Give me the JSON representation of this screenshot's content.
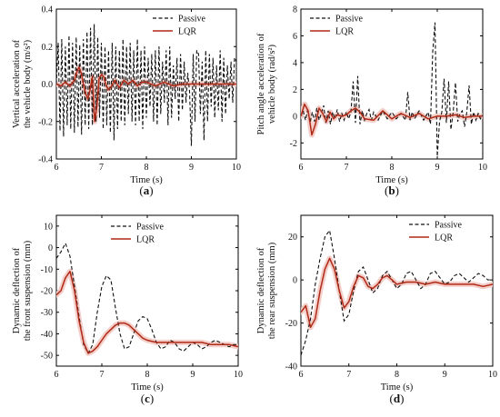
{
  "colors": {
    "passive": "#111111",
    "lqr": "#b02a17",
    "band": "#f3c9c3",
    "axis": "#000000"
  },
  "chart_data": [
    {
      "type": "line",
      "panel_label": "(a)",
      "caption_letter": "a",
      "xlabel": "Time (s)",
      "ylabel_line1": "Vertical acceleration of",
      "ylabel_line2": "the vehicle body (m/s²)",
      "xlim": [
        6,
        10
      ],
      "ylim": [
        -0.4,
        0.4
      ],
      "xticks": [
        6,
        7,
        8,
        9,
        10
      ],
      "yticks": [
        -0.4,
        -0.2,
        0.0,
        0.2,
        0.4
      ],
      "ytick_labels": [
        "-0.4",
        "-0.2",
        "0.0",
        "0.2",
        "0.4"
      ],
      "legend_position": "top-right",
      "series": [
        {
          "name": "Passive",
          "style": "dashed",
          "x": [
            6.0,
            6.04,
            6.08,
            6.12,
            6.16,
            6.2,
            6.24,
            6.28,
            6.32,
            6.36,
            6.4,
            6.44,
            6.48,
            6.52,
            6.56,
            6.6,
            6.64,
            6.68,
            6.72,
            6.76,
            6.8,
            6.84,
            6.88,
            6.92,
            6.96,
            7.0,
            7.04,
            7.08,
            7.12,
            7.16,
            7.2,
            7.24,
            7.28,
            7.32,
            7.36,
            7.4,
            7.44,
            7.48,
            7.52,
            7.56,
            7.6,
            7.64,
            7.68,
            7.72,
            7.76,
            7.8,
            7.84,
            7.88,
            7.92,
            7.96,
            8.0,
            8.04,
            8.08,
            8.12,
            8.16,
            8.2,
            8.24,
            8.28,
            8.32,
            8.36,
            8.4,
            8.44,
            8.48,
            8.52,
            8.56,
            8.6,
            8.64,
            8.68,
            8.72,
            8.76,
            8.8,
            8.84,
            8.88,
            8.92,
            8.96,
            9.0,
            9.04,
            9.08,
            9.12,
            9.16,
            9.2,
            9.24,
            9.28,
            9.32,
            9.36,
            9.4,
            9.44,
            9.48,
            9.52,
            9.56,
            9.6,
            9.64,
            9.68,
            9.72,
            9.76,
            9.8,
            9.84,
            9.88,
            9.92,
            9.96,
            10.0
          ],
          "y": [
            0.0,
            0.22,
            -0.25,
            0.24,
            -0.28,
            0.2,
            -0.22,
            0.26,
            -0.24,
            0.22,
            -0.26,
            0.25,
            -0.23,
            0.21,
            -0.27,
            0.24,
            -0.22,
            0.28,
            -0.24,
            0.3,
            -0.22,
            0.32,
            -0.2,
            0.25,
            -0.18,
            0.22,
            -0.24,
            0.2,
            -0.22,
            0.18,
            -0.26,
            0.22,
            -0.3,
            0.2,
            -0.24,
            0.18,
            -0.2,
            0.24,
            -0.22,
            0.2,
            -0.16,
            0.22,
            -0.2,
            0.18,
            -0.22,
            0.24,
            -0.2,
            0.18,
            -0.24,
            0.2,
            -0.18,
            0.14,
            -0.12,
            0.16,
            -0.2,
            0.18,
            -0.22,
            0.2,
            -0.16,
            0.12,
            -0.1,
            0.18,
            -0.22,
            0.2,
            -0.18,
            0.1,
            -0.08,
            0.14,
            -0.2,
            0.16,
            -0.14,
            0.12,
            -0.1,
            0.06,
            -0.04,
            -0.33,
            0.16,
            -0.2,
            0.18,
            0.16,
            -0.16,
            0.12,
            -0.3,
            0.18,
            -0.2,
            0.16,
            -0.12,
            0.14,
            -0.18,
            0.1,
            -0.14,
            0.18,
            -0.2,
            0.14,
            -0.16,
            0.1,
            -0.08,
            0.12,
            -0.1,
            0.14,
            0.12
          ]
        },
        {
          "name": "LQR",
          "style": "solid",
          "x": [
            6.0,
            6.1,
            6.2,
            6.3,
            6.4,
            6.45,
            6.5,
            6.55,
            6.6,
            6.65,
            6.7,
            6.75,
            6.8,
            6.85,
            6.9,
            6.95,
            7.0,
            7.05,
            7.1,
            7.15,
            7.2,
            7.3,
            7.4,
            7.5,
            7.6,
            7.7,
            7.8,
            7.9,
            8.0,
            8.2,
            8.4,
            8.6,
            8.8,
            9.0,
            9.2,
            9.4,
            9.6,
            9.8,
            10.0
          ],
          "y": [
            0.0,
            -0.01,
            0.01,
            -0.01,
            0.02,
            0.06,
            0.09,
            0.06,
            0.0,
            -0.05,
            -0.08,
            -0.03,
            0.04,
            -0.2,
            -0.12,
            0.03,
            0.05,
            0.04,
            0.0,
            -0.03,
            -0.02,
            0.02,
            -0.02,
            0.02,
            0.0,
            0.02,
            -0.01,
            0.01,
            0.01,
            -0.01,
            0.01,
            -0.01,
            0.0,
            0.0,
            0.0,
            0.0,
            0.0,
            0.0,
            0.0
          ]
        }
      ]
    },
    {
      "type": "line",
      "panel_label": "(b)",
      "caption_letter": "b",
      "xlabel": "Time (s)",
      "ylabel_line1": "Pitch angle acceleration of",
      "ylabel_line2": "vehicle body (rad/s²)",
      "xlim": [
        6,
        10
      ],
      "ylim": [
        -3.2,
        8
      ],
      "xticks": [
        6,
        7,
        8,
        9,
        10
      ],
      "yticks": [
        -2,
        0,
        2,
        4,
        6,
        8
      ],
      "ytick_labels": [
        "-2",
        "0",
        "2",
        "4",
        "6",
        "8"
      ],
      "legend_position": "top-left",
      "series": [
        {
          "name": "Passive",
          "style": "dashed",
          "x": [
            6.0,
            6.05,
            6.1,
            6.15,
            6.2,
            6.25,
            6.3,
            6.35,
            6.4,
            6.45,
            6.5,
            6.55,
            6.6,
            6.65,
            6.7,
            6.75,
            6.8,
            6.85,
            6.9,
            6.95,
            7.0,
            7.05,
            7.1,
            7.15,
            7.2,
            7.25,
            7.3,
            7.35,
            7.4,
            7.45,
            7.5,
            7.55,
            7.6,
            7.7,
            7.8,
            7.9,
            8.0,
            8.1,
            8.2,
            8.3,
            8.35,
            8.4,
            8.45,
            8.5,
            8.6,
            8.7,
            8.8,
            8.85,
            8.9,
            8.95,
            9.0,
            9.05,
            9.1,
            9.15,
            9.2,
            9.25,
            9.3,
            9.35,
            9.4,
            9.45,
            9.5,
            9.55,
            9.6,
            9.65,
            9.7,
            9.75,
            9.8,
            9.85,
            9.9,
            9.95,
            10.0
          ],
          "y": [
            0.0,
            0.4,
            -0.3,
            0.5,
            -0.5,
            0.3,
            -0.4,
            0.6,
            -0.3,
            0.2,
            0.8,
            -0.5,
            0.4,
            -0.6,
            0.3,
            -0.2,
            0.5,
            -0.4,
            0.2,
            -0.3,
            0.3,
            -0.2,
            0.3,
            2.6,
            -0.5,
            3.0,
            -0.6,
            0.4,
            -0.3,
            0.2,
            0.5,
            -0.3,
            0.3,
            -0.3,
            0.4,
            -0.2,
            0.3,
            -0.2,
            0.2,
            -0.3,
            1.8,
            -0.3,
            0.3,
            -0.2,
            0.4,
            -0.3,
            0.3,
            -0.6,
            4.8,
            7.0,
            -3.0,
            -0.4,
            0.3,
            2.8,
            -0.5,
            2.6,
            -1.0,
            0.3,
            2.5,
            -0.4,
            0.2,
            0.4,
            -0.8,
            0.3,
            2.3,
            -0.6,
            0.3,
            -0.3,
            0.2,
            -0.2,
            0.1
          ]
        },
        {
          "name": "LQR",
          "style": "solid",
          "x": [
            6.0,
            6.08,
            6.16,
            6.24,
            6.32,
            6.4,
            6.48,
            6.56,
            6.64,
            6.72,
            6.8,
            6.9,
            7.0,
            7.1,
            7.2,
            7.3,
            7.4,
            7.6,
            7.8,
            8.0,
            8.2,
            8.4,
            8.6,
            8.8,
            9.0,
            9.2,
            9.4,
            9.6,
            9.8,
            10.0
          ],
          "y": [
            0.0,
            0.9,
            0.4,
            -1.4,
            -0.6,
            0.6,
            0.2,
            -0.4,
            0.3,
            -0.2,
            0.1,
            0.0,
            0.1,
            0.4,
            0.6,
            0.3,
            -0.2,
            -0.3,
            0.4,
            -0.2,
            0.2,
            -0.1,
            0.2,
            -0.2,
            0.0,
            0.0,
            0.1,
            -0.1,
            0.0,
            0.0
          ]
        }
      ]
    },
    {
      "type": "line",
      "panel_label": "(c)",
      "caption_letter": "c",
      "xlabel": "Time (s)",
      "ylabel_line1": "Dynamic deflection of",
      "ylabel_line2": "the front suspension (mm)",
      "xlim": [
        6,
        10
      ],
      "ylim": [
        -55,
        15
      ],
      "xticks": [
        6,
        7,
        8,
        9,
        10
      ],
      "yticks": [
        -50,
        -40,
        -30,
        -20,
        -10,
        0,
        10
      ],
      "ytick_labels": [
        "-50",
        "-40",
        "-30",
        "-20",
        "-10",
        "0",
        "10"
      ],
      "legend_position": "top-center",
      "series": [
        {
          "name": "Passive",
          "style": "dashed",
          "x": [
            6.0,
            6.1,
            6.2,
            6.3,
            6.4,
            6.5,
            6.6,
            6.7,
            6.8,
            6.9,
            7.0,
            7.1,
            7.2,
            7.3,
            7.4,
            7.5,
            7.6,
            7.7,
            7.8,
            7.9,
            8.0,
            8.1,
            8.2,
            8.3,
            8.4,
            8.5,
            8.6,
            8.7,
            8.8,
            8.9,
            9.0,
            9.1,
            9.2,
            9.3,
            9.4,
            9.5,
            9.6,
            9.7,
            9.8,
            9.9,
            10.0
          ],
          "y": [
            -5,
            -2,
            2,
            -4,
            -18,
            -32,
            -45,
            -49,
            -45,
            -30,
            -18,
            -13,
            -15,
            -28,
            -40,
            -47,
            -46,
            -40,
            -34,
            -32,
            -33,
            -38,
            -44,
            -47,
            -46,
            -43,
            -44,
            -47,
            -48,
            -46,
            -44,
            -45,
            -47,
            -46,
            -44,
            -43,
            -44,
            -45,
            -46,
            -45,
            -45
          ]
        },
        {
          "name": "LQR",
          "style": "solid",
          "x": [
            6.0,
            6.1,
            6.2,
            6.3,
            6.4,
            6.5,
            6.6,
            6.7,
            6.8,
            6.9,
            7.0,
            7.1,
            7.2,
            7.3,
            7.4,
            7.5,
            7.6,
            7.7,
            7.8,
            7.9,
            8.0,
            8.2,
            8.4,
            8.6,
            8.8,
            9.0,
            9.2,
            9.4,
            9.6,
            9.8,
            10.0
          ],
          "y": [
            -22,
            -20,
            -14,
            -11,
            -20,
            -34,
            -44,
            -49,
            -48,
            -46,
            -43,
            -40,
            -38,
            -36,
            -35,
            -35,
            -36,
            -38,
            -40,
            -42,
            -43,
            -44,
            -44,
            -44,
            -44,
            -44,
            -44,
            -45,
            -45,
            -45,
            -46
          ]
        }
      ]
    },
    {
      "type": "line",
      "panel_label": "(d)",
      "caption_letter": "d",
      "xlabel": "Time (s)",
      "ylabel_line1": "Dynamic deflection of",
      "ylabel_line2": "the rear suspension (mm)",
      "xlim": [
        6,
        10
      ],
      "ylim": [
        -40,
        30
      ],
      "xticks": [
        6,
        7,
        8,
        9,
        10
      ],
      "yticks": [
        -40,
        -20,
        0,
        20
      ],
      "ytick_labels": [
        "-40",
        "-20",
        "0",
        "20"
      ],
      "legend_position": "top-right",
      "series": [
        {
          "name": "Passive",
          "style": "dashed",
          "x": [
            6.0,
            6.1,
            6.2,
            6.3,
            6.4,
            6.5,
            6.6,
            6.7,
            6.8,
            6.9,
            7.0,
            7.1,
            7.2,
            7.3,
            7.4,
            7.5,
            7.6,
            7.7,
            7.8,
            7.9,
            8.0,
            8.1,
            8.2,
            8.3,
            8.4,
            8.5,
            8.6,
            8.7,
            8.8,
            8.9,
            9.0,
            9.1,
            9.2,
            9.3,
            9.4,
            9.5,
            9.6,
            9.7,
            9.8,
            9.9,
            10.0
          ],
          "y": [
            -35,
            -28,
            -18,
            -2,
            10,
            20,
            23,
            10,
            -5,
            -19,
            -16,
            -5,
            4,
            6,
            0,
            -6,
            -4,
            2,
            4,
            0,
            -4,
            -2,
            3,
            4,
            0,
            -4,
            -2,
            3,
            4,
            1,
            -2,
            -1,
            2,
            3,
            1,
            -1,
            1,
            3,
            2,
            0,
            0
          ]
        },
        {
          "name": "LQR",
          "style": "solid",
          "x": [
            6.0,
            6.1,
            6.2,
            6.3,
            6.4,
            6.5,
            6.6,
            6.7,
            6.8,
            6.9,
            7.0,
            7.1,
            7.2,
            7.3,
            7.4,
            7.5,
            7.6,
            7.7,
            7.8,
            7.9,
            8.0,
            8.2,
            8.4,
            8.6,
            8.8,
            9.0,
            9.2,
            9.4,
            9.6,
            9.8,
            10.0
          ],
          "y": [
            -15,
            -12,
            -22,
            -18,
            -5,
            5,
            10,
            5,
            -5,
            -13,
            -10,
            -3,
            2,
            1,
            -3,
            -4,
            -2,
            1,
            2,
            0,
            -2,
            -1,
            -1,
            -2,
            -1,
            -2,
            -2,
            -2,
            -2,
            -3,
            -2
          ]
        }
      ]
    }
  ]
}
